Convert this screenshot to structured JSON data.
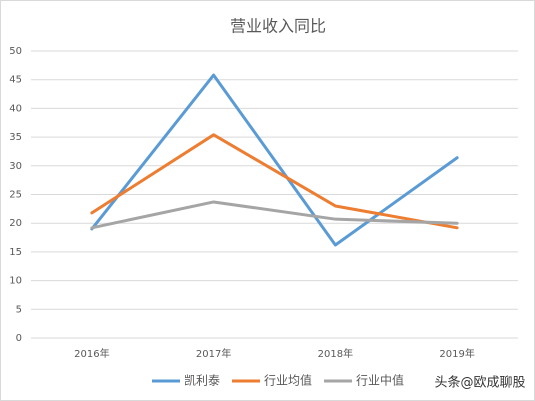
{
  "chart_data": {
    "type": "line",
    "title": "营业收入同比",
    "categories": [
      "2016年",
      "2017年",
      "2018年",
      "2019年"
    ],
    "series": [
      {
        "name": "凯利泰",
        "color": "#5b9bd5",
        "values": [
          19,
          45.8,
          16.2,
          31.4
        ]
      },
      {
        "name": "行业均值",
        "color": "#ed7d31",
        "values": [
          21.8,
          35.4,
          23,
          19.2
        ]
      },
      {
        "name": "行业中值",
        "color": "#a5a5a5",
        "values": [
          19.2,
          23.7,
          20.7,
          20
        ]
      }
    ],
    "ylim": [
      0,
      50
    ],
    "yticks": [
      0,
      5,
      10,
      15,
      20,
      25,
      30,
      35,
      40,
      45,
      50
    ],
    "grid": true,
    "legend": "bottom"
  },
  "watermark": "头条@欧成聊股"
}
